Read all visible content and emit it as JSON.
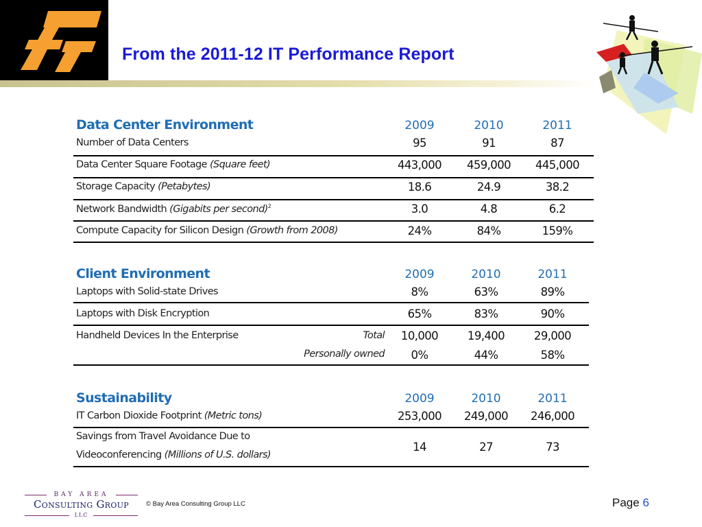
{
  "slide": {
    "title": "From the 2011-12 IT Performance Report"
  },
  "years": [
    "2009",
    "2010",
    "2011"
  ],
  "data_center": {
    "heading": "Data Center Environment",
    "rows": [
      {
        "label": "Number of Data Centers",
        "note": "",
        "values": [
          "95",
          "91",
          "87"
        ]
      },
      {
        "label": "Data Center Square Footage",
        "note": "(Square feet)",
        "values": [
          "443,000",
          "459,000",
          "445,000"
        ]
      },
      {
        "label": "Storage Capacity",
        "note": "(Petabytes)",
        "values": [
          "18.6",
          "24.9",
          "38.2"
        ]
      },
      {
        "label": "Network Bandwidth",
        "note": "(Gigabits per second)",
        "footnote": "2",
        "values": [
          "3.0",
          "4.8",
          "6.2"
        ]
      },
      {
        "label": "Compute Capacity for Silicon Design",
        "note": "(Growth from 2008)",
        "values": [
          "24%",
          "84%",
          "159%"
        ]
      }
    ]
  },
  "client": {
    "heading": "Client Environment",
    "rows": [
      {
        "label": "Laptops with Solid-state Drives",
        "values": [
          "8%",
          "63%",
          "89%"
        ]
      },
      {
        "label": "Laptops with Disk Encryption",
        "values": [
          "65%",
          "83%",
          "90%"
        ]
      },
      {
        "label": "Handheld Devices In the Enterprise",
        "sub": "Total",
        "values": [
          "10,000",
          "19,400",
          "29,000"
        ]
      },
      {
        "label": "",
        "sub": "Personally owned",
        "values": [
          "0%",
          "44%",
          "58%"
        ]
      }
    ]
  },
  "sustainability": {
    "heading": "Sustainability",
    "rows": [
      {
        "label": "IT Carbon Dioxide Footprint",
        "note": "(Metric tons)",
        "values": [
          "253,000",
          "249,000",
          "246,000"
        ]
      },
      {
        "label": "Savings from Travel Avoidance Due to",
        "label2": "Videoconferencing",
        "note": "(Millions of U.S. dollars)",
        "values": [
          "14",
          "27",
          "73"
        ]
      }
    ]
  },
  "footer": {
    "logo_top": "BAY AREA",
    "logo_main": "Consulting Group",
    "logo_bottom": "LLC",
    "copyright": "© Bay Area Consulting Group LLC",
    "page_label": "Page",
    "page_number": "6"
  },
  "colors": {
    "title": "#1a1ad6",
    "section_heading": "#1f6db3",
    "logo_orange": "#f5a030",
    "page_number": "#1f50c8"
  }
}
